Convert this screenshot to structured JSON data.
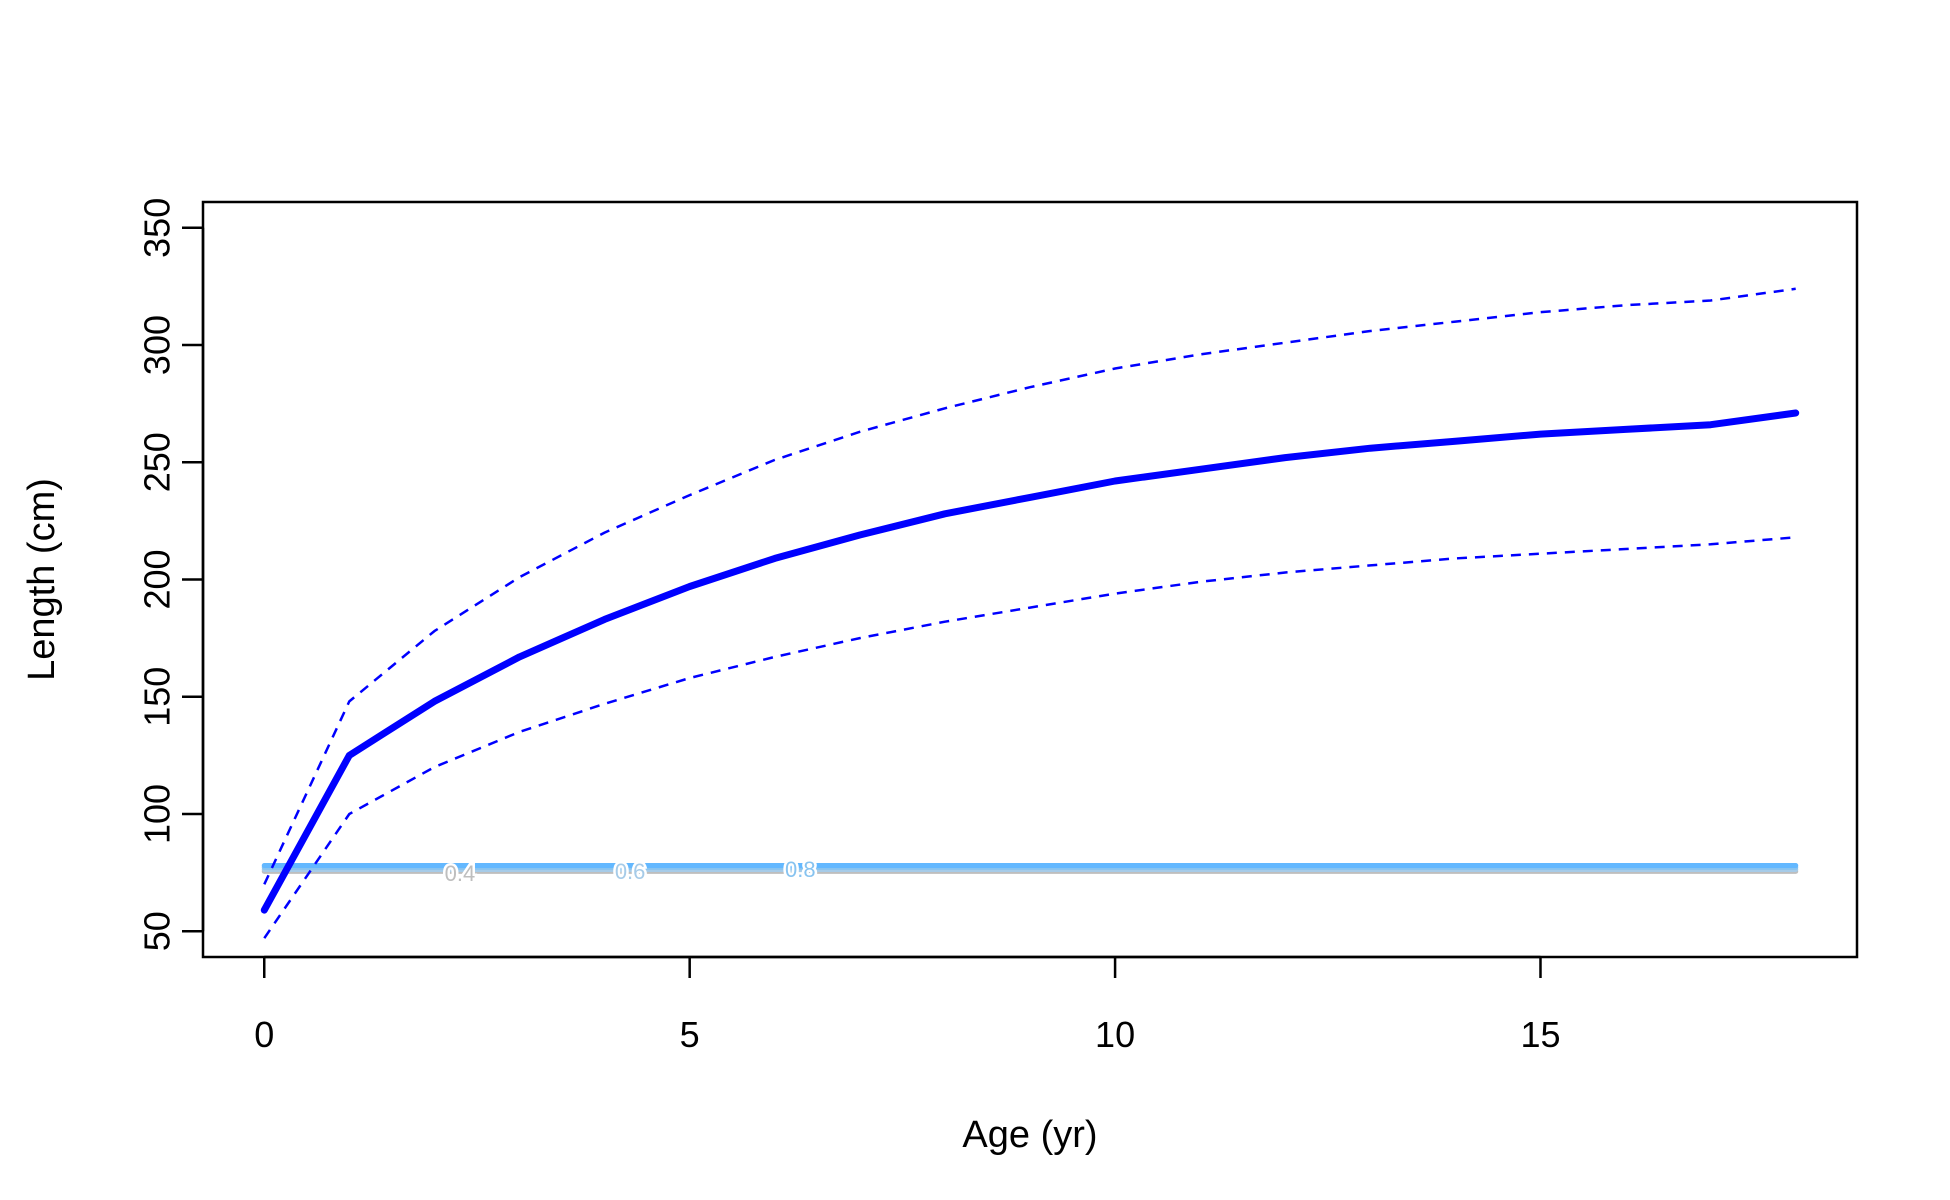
{
  "chart_data": {
    "type": "line",
    "title": "",
    "xlabel": "Age (yr)",
    "ylabel": "Length (cm)",
    "xlim": [
      -0.72,
      18.72
    ],
    "ylim": [
      39,
      361
    ],
    "x_ticks": [
      0,
      5,
      10,
      15
    ],
    "y_ticks": [
      50,
      100,
      150,
      200,
      250,
      300,
      350
    ],
    "grid": false,
    "legend": "none",
    "x": [
      0,
      1,
      2,
      3,
      4,
      5,
      6,
      7,
      8,
      9,
      10,
      11,
      12,
      13,
      14,
      15,
      16,
      17,
      18
    ],
    "series": [
      {
        "role": "mean",
        "color": "#0000ff",
        "style": "solid-thick",
        "values": [
          59,
          125,
          148,
          167,
          183,
          197,
          209,
          219,
          228,
          235,
          242,
          247,
          252,
          256,
          259,
          262,
          264,
          266,
          271
        ]
      },
      {
        "role": "upper-interval",
        "color": "#0000ff",
        "style": "dashed",
        "values": [
          70,
          148,
          178,
          201,
          220,
          236,
          251,
          263,
          273,
          282,
          290,
          296,
          301,
          306,
          310,
          314,
          317,
          319,
          324
        ]
      },
      {
        "role": "lower-interval",
        "color": "#0000ff",
        "style": "dashed",
        "values": [
          47,
          100,
          120,
          135,
          147,
          158,
          167,
          175,
          182,
          188,
          194,
          199,
          203,
          206,
          209,
          211,
          213,
          215,
          218
        ]
      }
    ],
    "maturity_band": {
      "x_range": [
        0,
        18
      ],
      "bands": [
        {
          "y": 75.5,
          "color": "#bebebe",
          "label": "0.4"
        },
        {
          "y": 76.3,
          "color": "#a6cbe8",
          "label": "0.6"
        },
        {
          "y": 77.2,
          "color": "#87c3f0",
          "label": "0.8"
        },
        {
          "y": 78.0,
          "color": "#63b8ff",
          "label": ""
        }
      ],
      "label_x": [
        2.3,
        4.3,
        6.3
      ]
    }
  }
}
